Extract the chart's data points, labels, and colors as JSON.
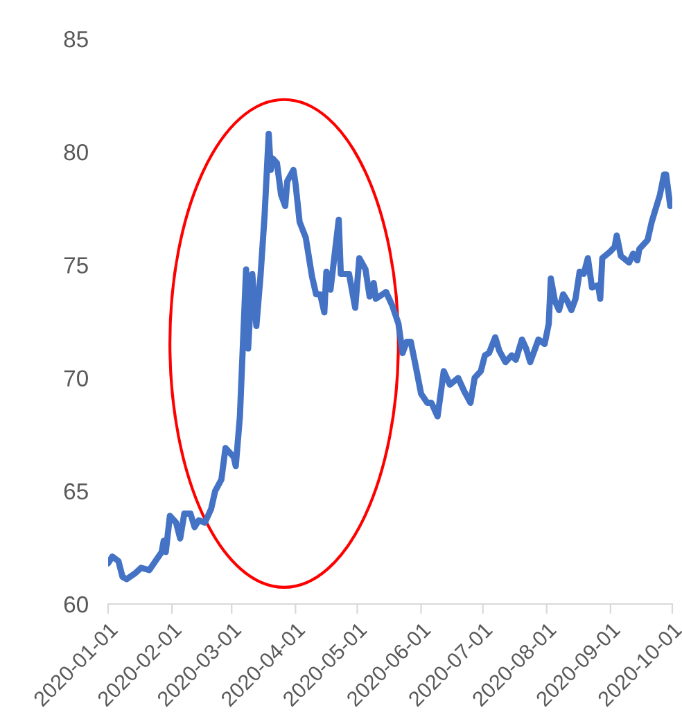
{
  "chart_data": {
    "type": "line",
    "x": [
      "2020-01-01",
      "2020-01-03",
      "2020-01-06",
      "2020-01-08",
      "2020-01-10",
      "2020-01-14",
      "2020-01-17",
      "2020-01-21",
      "2020-01-24",
      "2020-01-27",
      "2020-01-28",
      "2020-01-29",
      "2020-01-31",
      "2020-02-03",
      "2020-02-05",
      "2020-02-07",
      "2020-02-10",
      "2020-02-12",
      "2020-02-14",
      "2020-02-17",
      "2020-02-20",
      "2020-02-22",
      "2020-02-25",
      "2020-02-27",
      "2020-03-02",
      "2020-03-03",
      "2020-03-05",
      "2020-03-08",
      "2020-03-09",
      "2020-03-11",
      "2020-03-13",
      "2020-03-15",
      "2020-03-17",
      "2020-03-19",
      "2020-03-20",
      "2020-03-21",
      "2020-03-23",
      "2020-03-25",
      "2020-03-27",
      "2020-03-28",
      "2020-03-31",
      "2020-04-01",
      "2020-04-03",
      "2020-04-06",
      "2020-04-09",
      "2020-04-11",
      "2020-04-13",
      "2020-04-15",
      "2020-04-16",
      "2020-04-18",
      "2020-04-22",
      "2020-04-23",
      "2020-04-27",
      "2020-04-30",
      "2020-05-02",
      "2020-05-05",
      "2020-05-07",
      "2020-05-09",
      "2020-05-10",
      "2020-05-15",
      "2020-05-18",
      "2020-05-21",
      "2020-05-23",
      "2020-05-25",
      "2020-05-27",
      "2020-05-29",
      "2020-06-01",
      "2020-06-04",
      "2020-06-06",
      "2020-06-09",
      "2020-06-12",
      "2020-06-15",
      "2020-06-19",
      "2020-06-22",
      "2020-06-25",
      "2020-06-27",
      "2020-06-30",
      "2020-07-02",
      "2020-07-04",
      "2020-07-07",
      "2020-07-09",
      "2020-07-12",
      "2020-07-15",
      "2020-07-17",
      "2020-07-20",
      "2020-07-22",
      "2020-07-24",
      "2020-07-28",
      "2020-07-31",
      "2020-08-02",
      "2020-08-03",
      "2020-08-05",
      "2020-08-07",
      "2020-08-09",
      "2020-08-11",
      "2020-08-13",
      "2020-08-15",
      "2020-08-17",
      "2020-08-19",
      "2020-08-21",
      "2020-08-23",
      "2020-08-26",
      "2020-08-27",
      "2020-08-28",
      "2020-09-01",
      "2020-09-03",
      "2020-09-04",
      "2020-09-06",
      "2020-09-10",
      "2020-09-12",
      "2020-09-14",
      "2020-09-15",
      "2020-09-19",
      "2020-09-21",
      "2020-09-23",
      "2020-09-25",
      "2020-09-27",
      "2020-09-28",
      "2020-09-30"
    ],
    "series": [
      {
        "color": "#4472c4",
        "values": [
          61.8,
          62.1,
          61.9,
          61.2,
          61.1,
          61.35,
          61.6,
          61.5,
          61.9,
          62.3,
          62.8,
          62.3,
          63.9,
          63.6,
          62.9,
          64.0,
          64.0,
          63.4,
          63.7,
          63.6,
          64.2,
          65.0,
          65.5,
          66.9,
          66.5,
          66.1,
          68.3,
          74.8,
          71.3,
          74.6,
          72.3,
          74.5,
          77.2,
          80.8,
          79.2,
          79.7,
          79.5,
          78.1,
          77.6,
          78.7,
          79.2,
          78.6,
          76.9,
          76.2,
          74.5,
          73.7,
          73.7,
          72.9,
          74.7,
          73.9,
          77.0,
          74.6,
          74.6,
          73.1,
          75.3,
          74.8,
          73.6,
          74.2,
          73.5,
          73.8,
          73.2,
          72.4,
          71.1,
          71.6,
          71.6,
          70.7,
          69.3,
          68.9,
          68.9,
          68.3,
          70.3,
          69.7,
          70.0,
          69.4,
          68.9,
          70.0,
          70.3,
          71.0,
          71.1,
          71.8,
          71.2,
          70.7,
          71.0,
          70.8,
          71.7,
          71.3,
          70.7,
          71.7,
          71.5,
          72.4,
          74.4,
          73.4,
          73.0,
          73.7,
          73.4,
          73.0,
          73.5,
          74.7,
          74.6,
          75.3,
          74.0,
          74.1,
          73.5,
          75.3,
          75.6,
          75.8,
          76.3,
          75.4,
          75.1,
          75.5,
          75.2,
          75.7,
          76.1,
          76.9,
          77.5,
          78.1,
          79.0,
          79.0,
          77.6
        ]
      }
    ],
    "xlim": [
      "2020-01-01",
      "2020-10-01"
    ],
    "xticks": [
      "2020-01-01",
      "2020-02-01",
      "2020-03-01",
      "2020-04-01",
      "2020-05-01",
      "2020-06-01",
      "2020-07-01",
      "2020-08-01",
      "2020-09-01",
      "2020-10-01"
    ],
    "ylim": [
      60,
      85
    ],
    "yticks": [
      60,
      65,
      70,
      75,
      80,
      85
    ],
    "grid": false,
    "legend": false,
    "line_style": "solid"
  }
}
